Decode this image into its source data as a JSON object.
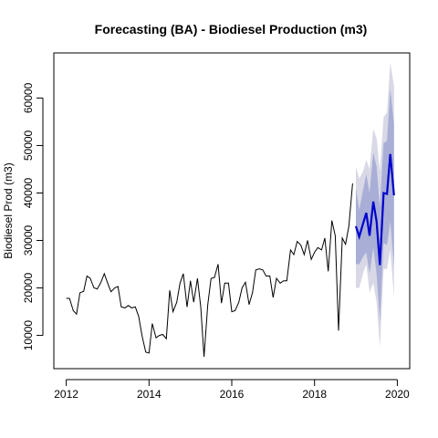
{
  "chart_data": {
    "type": "line",
    "title": "Forecasting (BA) - Biodiesel Production (m3)",
    "xlabel": "",
    "ylabel": "Biodiesel Prod (m3)",
    "xlim": [
      2011.7,
      2020.3
    ],
    "ylim": [
      3000,
      69500
    ],
    "x_ticks": [
      2012,
      2014,
      2016,
      2018,
      2020
    ],
    "y_ticks": [
      10000,
      20000,
      30000,
      40000,
      50000,
      60000
    ],
    "grid": false,
    "legend": "none",
    "colors": {
      "history": "#000000",
      "forecast": "#0000cc",
      "band_80": "#a9aed6",
      "band_95": "#d8d8e6"
    },
    "series": [
      {
        "role": "history",
        "x": [
          2012.0,
          2012.08,
          2012.17,
          2012.25,
          2012.33,
          2012.42,
          2012.5,
          2012.58,
          2012.67,
          2012.75,
          2012.83,
          2012.92,
          2013.0,
          2013.08,
          2013.17,
          2013.25,
          2013.33,
          2013.42,
          2013.5,
          2013.58,
          2013.67,
          2013.75,
          2013.83,
          2013.92,
          2014.0,
          2014.08,
          2014.17,
          2014.25,
          2014.33,
          2014.42,
          2014.5,
          2014.58,
          2014.67,
          2014.75,
          2014.83,
          2014.92,
          2015.0,
          2015.08,
          2015.17,
          2015.25,
          2015.33,
          2015.42,
          2015.5,
          2015.58,
          2015.67,
          2015.75,
          2015.83,
          2015.92,
          2016.0,
          2016.08,
          2016.17,
          2016.25,
          2016.33,
          2016.42,
          2016.5,
          2016.58,
          2016.67,
          2016.75,
          2016.83,
          2016.92,
          2017.0,
          2017.08,
          2017.17,
          2017.25,
          2017.33,
          2017.42,
          2017.5,
          2017.58,
          2017.67,
          2017.75,
          2017.83,
          2017.92,
          2018.0,
          2018.08,
          2018.17,
          2018.25,
          2018.33,
          2018.42,
          2018.5,
          2018.58,
          2018.67,
          2018.75,
          2018.83,
          2018.92
        ],
        "y": [
          17800,
          17800,
          15200,
          14500,
          19000,
          19300,
          22500,
          22000,
          20000,
          19800,
          21000,
          23000,
          21000,
          19200,
          20000,
          20300,
          16000,
          15800,
          16300,
          15800,
          16000,
          14000,
          10000,
          6500,
          6300,
          12500,
          9500,
          10000,
          10200,
          9300,
          19500,
          15000,
          17000,
          21000,
          23000,
          16000,
          21500,
          17000,
          22000,
          16000,
          5500,
          16500,
          22000,
          22200,
          25000,
          16800,
          21000,
          21000,
          15000,
          15200,
          17000,
          20000,
          21200,
          16500,
          19000,
          23800,
          24000,
          23800,
          22500,
          22500,
          18000,
          22000,
          21000,
          21500,
          21500,
          28000,
          27000,
          29800,
          29000,
          27000,
          30000,
          26000,
          27500,
          28500,
          28000,
          30500,
          23500,
          34200,
          31000,
          11000,
          30500,
          29200,
          33000,
          42000
        ]
      },
      {
        "role": "forecast",
        "x": [
          2019.0,
          2019.08,
          2019.17,
          2019.25,
          2019.33,
          2019.42,
          2019.5,
          2019.58,
          2019.67,
          2019.75,
          2019.83,
          2019.92
        ],
        "y": [
          33000,
          30800,
          33500,
          35800,
          31000,
          38200,
          34000,
          24800,
          40000,
          39800,
          48200,
          39500
        ],
        "lo80": [
          25000,
          25000,
          26500,
          27500,
          23000,
          28500,
          23000,
          13000,
          29500,
          29000,
          34000,
          24500
        ],
        "hi80": [
          41000,
          36500,
          40500,
          44000,
          40000,
          48500,
          45500,
          37000,
          50500,
          51000,
          62000,
          54500
        ],
        "lo95": [
          20000,
          20000,
          23000,
          25000,
          19000,
          21000,
          17000,
          7500,
          24000,
          24000,
          28000,
          18000
        ],
        "hi95": [
          45500,
          43000,
          44500,
          47000,
          45000,
          53500,
          51500,
          44500,
          56000,
          57000,
          67500,
          62500
        ]
      }
    ]
  }
}
